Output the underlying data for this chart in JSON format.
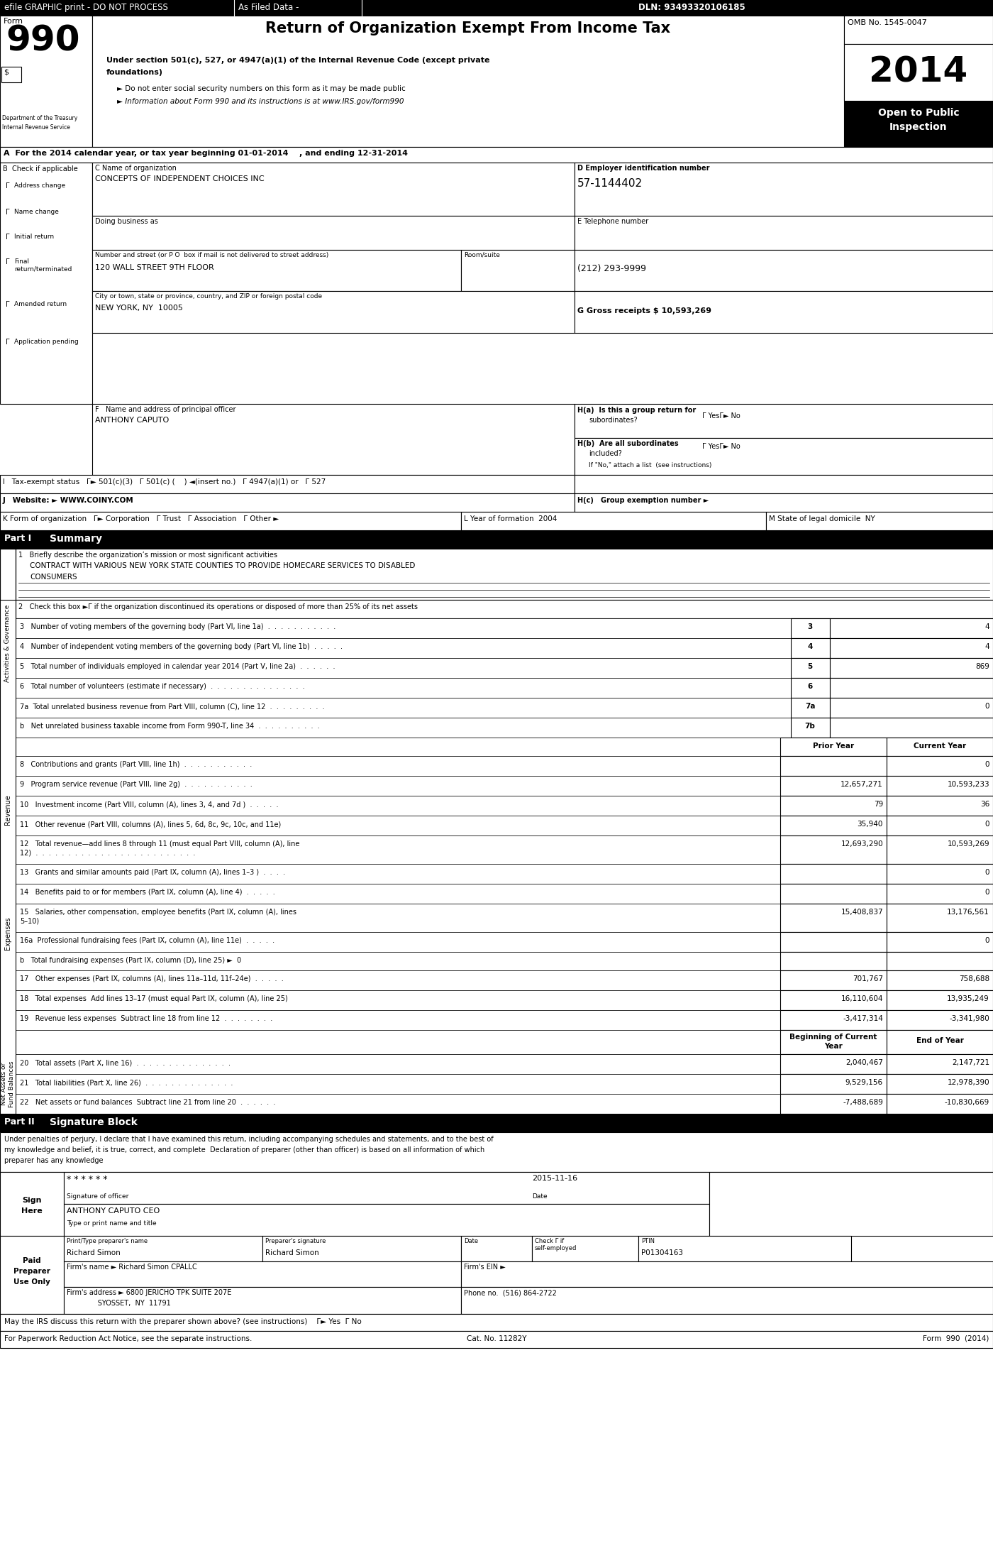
{
  "title": "Return of Organization Exempt From Income Tax",
  "subtitle1": "Under section 501(c), 527, or 4947(a)(1) of the Internal Revenue Code (except private",
  "subtitle2": "foundations)",
  "bullet1": "► Do not enter social security numbers on this form as it may be made public",
  "bullet2": "► Information about Form 990 and its instructions is at www.IRS.gov/form990",
  "efile_header": "efile GRAPHIC print - DO NOT PROCESS",
  "as_filed": "As Filed Data -",
  "dln": "DLN: 93493320106185",
  "form_number": "990",
  "year": "2014",
  "omb": "OMB No. 1545-0047",
  "open_public": "Open to Public\nInspection",
  "dept_treasury": "Department of the Treasury",
  "internal_revenue": "Internal Revenue Service",
  "section_A": "A  For the 2014 calendar year, or tax year beginning 01-01-2014    , and ending 12-31-2014",
  "B_label": "B  Check if applicable",
  "check_items": [
    "Address change",
    "Name change",
    "Initial return",
    "Final\nreturn/terminated",
    "Amended return",
    "Application pending"
  ],
  "C_label": "C Name of organization",
  "org_name": "CONCEPTS OF INDEPENDENT CHOICES INC",
  "doing_business": "Doing business as",
  "street_label": "Number and street (or P O  box if mail is not delivered to street address)",
  "room_label": "Room/suite",
  "street": "120 WALL STREET 9TH FLOOR",
  "city_label": "City or town, state or province, country, and ZIP or foreign postal code",
  "city": "NEW YORK, NY  10005",
  "D_label": "D Employer identification number",
  "ein": "57-1144402",
  "E_label": "E Telephone number",
  "phone": "(212) 293-9999",
  "G_label": "G Gross receipts $ 10,593,269",
  "F_label": "F   Name and address of principal officer",
  "principal_officer": "ANTHONY CAPUTO",
  "Ha_label": "H(a)  Is this a group return for",
  "Ha_sub": "subordinates?",
  "Ha_answer": "Γ YesΓ► No",
  "Hb_label": "H(b)  Are all subordinates",
  "Hb_sub": "included?",
  "Hb_answer": "Γ YesΓ► No",
  "Hb_note": "If \"No,\" attach a list  (see instructions)",
  "I_label": "I   Tax-exempt status",
  "I_status": "Γ► 501(c)(3)   Γ 501(c) (    ) ◄(insert no.)   Γ 4947(a)(1) or   Γ 527",
  "J_label": "J   Website: ►",
  "website": "WWW.COINY.COM",
  "Hc_label": "H(c)   Group exemption number ►",
  "K_label": "K Form of organization",
  "K_options": "Γ► Corporation   Γ Trust   Γ Association   Γ Other ►",
  "L_label": "L Year of formation  2004",
  "M_label": "M State of legal domicile  NY",
  "part1_label": "Part I",
  "part1_title": "Summary",
  "line1_label": "1   Briefly describe the organization’s mission or most significant activities",
  "mission_line1": "CONTRACT WITH VARIOUS NEW YORK STATE COUNTIES TO PROVIDE HOMECARE SERVICES TO DISABLED",
  "mission_line2": "CONSUMERS",
  "line2_label": "2   Check this box ►Γ if the organization discontinued its operations or disposed of more than 25% of its net assets",
  "line3_label": "3   Number of voting members of the governing body (Part VI, line 1a)  .  .  .  .  .  .  .  .  .  .  .",
  "line3_num": "3",
  "line3_val": "4",
  "line4_label": "4   Number of independent voting members of the governing body (Part VI, line 1b)  .  .  .  .  .",
  "line4_num": "4",
  "line4_val": "4",
  "line5_label": "5   Total number of individuals employed in calendar year 2014 (Part V, line 2a)  .  .  .  .  .  .",
  "line5_num": "5",
  "line5_val": "869",
  "line6_label": "6   Total number of volunteers (estimate if necessary)  .  .  .  .  .  .  .  .  .  .  .  .  .  .  .",
  "line6_num": "6",
  "line6_val": "",
  "line7a_label": "7a  Total unrelated business revenue from Part VIII, column (C), line 12  .  .  .  .  .  .  .  .  .",
  "line7a_num": "7a",
  "line7a_val": "0",
  "line7b_label": "b   Net unrelated business taxable income from Form 990-T, line 34  .  .  .  .  .  .  .  .  .  .",
  "line7b_num": "7b",
  "line7b_val": "",
  "prior_year": "Prior Year",
  "current_year": "Current Year",
  "line8_label": "8   Contributions and grants (Part VIII, line 1h)  .  .  .  .  .  .  .  .  .  .  .",
  "line8_prior": "",
  "line8_curr": "0",
  "line9_label": "9   Program service revenue (Part VIII, line 2g)  .  .  .  .  .  .  .  .  .  .  .",
  "line9_prior": "12,657,271",
  "line9_curr": "10,593,233",
  "line10_label": "10   Investment income (Part VIII, column (A), lines 3, 4, and 7d )  .  .  .  .  .",
  "line10_prior": "79",
  "line10_curr": "36",
  "line11_label": "11   Other revenue (Part VIII, columns (A), lines 5, 6d, 8c, 9c, 10c, and 11e)",
  "line11_prior": "35,940",
  "line11_curr": "0",
  "line12_label1": "12   Total revenue—add lines 8 through 11 (must equal Part VIII, column (A), line",
  "line12_label2": "12)  .  .  .  .  .  .  .  .  .  .  .  .  .  .  .  .  .  .  .  .  .  .  .  .  .",
  "line12_prior": "12,693,290",
  "line12_curr": "10,593,269",
  "line13_label": "13   Grants and similar amounts paid (Part IX, column (A), lines 1–3 )  .  .  .  .",
  "line13_prior": "",
  "line13_curr": "0",
  "line14_label": "14   Benefits paid to or for members (Part IX, column (A), line 4)  .  .  .  .  .",
  "line14_prior": "",
  "line14_curr": "0",
  "line15_label1": "15   Salaries, other compensation, employee benefits (Part IX, column (A), lines",
  "line15_label2": "5–10)",
  "line15_prior": "15,408,837",
  "line15_curr": "13,176,561",
  "line16a_label": "16a  Professional fundraising fees (Part IX, column (A), line 11e)  .  .  .  .  .",
  "line16a_prior": "",
  "line16a_curr": "0",
  "line16b_label": "b   Total fundraising expenses (Part IX, column (D), line 25) ►",
  "line16b_val": "0",
  "line17_label": "17   Other expenses (Part IX, columns (A), lines 11a–11d, 11f–24e)  .  .  .  .  .",
  "line17_prior": "701,767",
  "line17_curr": "758,688",
  "line18_label": "18   Total expenses  Add lines 13–17 (must equal Part IX, column (A), line 25)",
  "line18_prior": "16,110,604",
  "line18_curr": "13,935,249",
  "line19_label": "19   Revenue less expenses  Subtract line 18 from line 12  .  .  .  .  .  .  .  .",
  "line19_prior": "-3,417,314",
  "line19_curr": "-3,341,980",
  "boc_label": "Beginning of Current\nYear",
  "eoy_label": "End of Year",
  "line20_label": "20   Total assets (Part X, line 16)  .  .  .  .  .  .  .  .  .  .  .  .  .  .  .",
  "line20_boc": "2,040,467",
  "line20_eoy": "2,147,721",
  "line21_label": "21   Total liabilities (Part X, line 26)  .  .  .  .  .  .  .  .  .  .  .  .  .  .",
  "line21_boc": "9,529,156",
  "line21_eoy": "12,978,390",
  "line22_label": "22   Net assets or fund balances  Subtract line 21 from line 20  .  .  .  .  .  .",
  "line22_boc": "-7,488,689",
  "line22_eoy": "-10,830,669",
  "part2_label": "Part II",
  "part2_title": "Signature Block",
  "sig_text1": "Under penalties of perjury, I declare that I have examined this return, including accompanying schedules and statements, and to the best of",
  "sig_text2": "my knowledge and belief, it is true, correct, and complete  Declaration of preparer (other than officer) is based on all information of which",
  "sig_text3": "preparer has any knowledge",
  "sign_here": "Sign\nHere",
  "sig_stars": "* * * * * *",
  "sig_date": "2015-11-16",
  "sig_label": "Signature of officer",
  "sig_date_label": "Date",
  "sig_name": "ANTHONY CAPUTO CEO",
  "sig_title_label": "Type or print name and title",
  "preparer_name_label": "Print/Type preparer's name",
  "preparer_sig_label": "Preparer's signature",
  "preparer_date_label": "Date",
  "preparer_check_label": "Check Γ if\nself-employed",
  "preparer_ptin_label": "PTIN",
  "preparer_name": "Richard Simon",
  "preparer_sig": "Richard Simon",
  "preparer_ptin": "P01304163",
  "paid_preparer": "Paid\nPreparer\nUse Only",
  "firm_name_label": "Firm's name ►",
  "firm_name": "Richard Simon CPALLC",
  "firm_ein_label": "Firm's EIN ►",
  "firm_address_label": "Firm's address ►",
  "firm_address": "6800 JERICHO TPK SUITE 207E",
  "firm_city": "SYOSSET,  NY  11791",
  "firm_phone_label": "Phone no.",
  "firm_phone": "(516) 864-2722",
  "irs_discuss": "May the IRS discuss this return with the preparer shown above? (see instructions)",
  "irs_discuss_answer": "Γ► Yes  Γ No",
  "paperwork_label": "For Paperwork Reduction Act Notice, see the separate instructions.",
  "cat_no": "Cat. No. 11282Y",
  "form_990_2014": "Form  990  (2014)",
  "activities_label": "Activities & Governance",
  "revenue_label": "Revenue",
  "expenses_label": "Expenses",
  "net_assets_label": "Net Assets or\nFund Balances"
}
